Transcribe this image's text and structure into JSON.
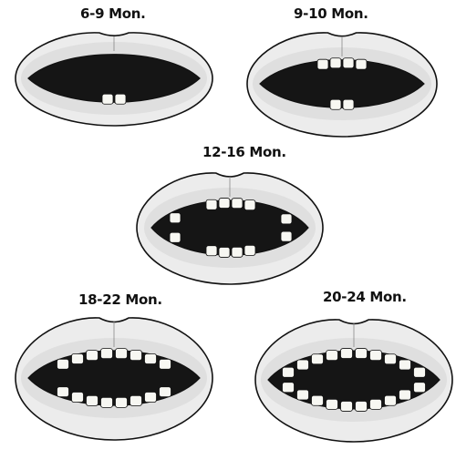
{
  "stages": [
    {
      "id": "6-9",
      "label": "6-9 Mon.",
      "upper_teeth": 0,
      "lower_teeth": 2
    },
    {
      "id": "9-10",
      "label": "9-10 Mon.",
      "upper_teeth": 4,
      "lower_teeth": 2
    },
    {
      "id": "12-16",
      "label": "12-16 Mon.",
      "upper_teeth": 6,
      "lower_teeth": 6
    },
    {
      "id": "18-22",
      "label": "18-22 Mon.",
      "upper_teeth": 8,
      "lower_teeth": 8
    },
    {
      "id": "20-24",
      "label": "20-24 Mon.",
      "upper_teeth": 10,
      "lower_teeth": 10
    }
  ],
  "colors": {
    "ink": "#111111",
    "lip": "#ececec",
    "lip_shade": "#d6d6d6",
    "mouth": "#151515",
    "tooth": "#f7f7f2"
  }
}
